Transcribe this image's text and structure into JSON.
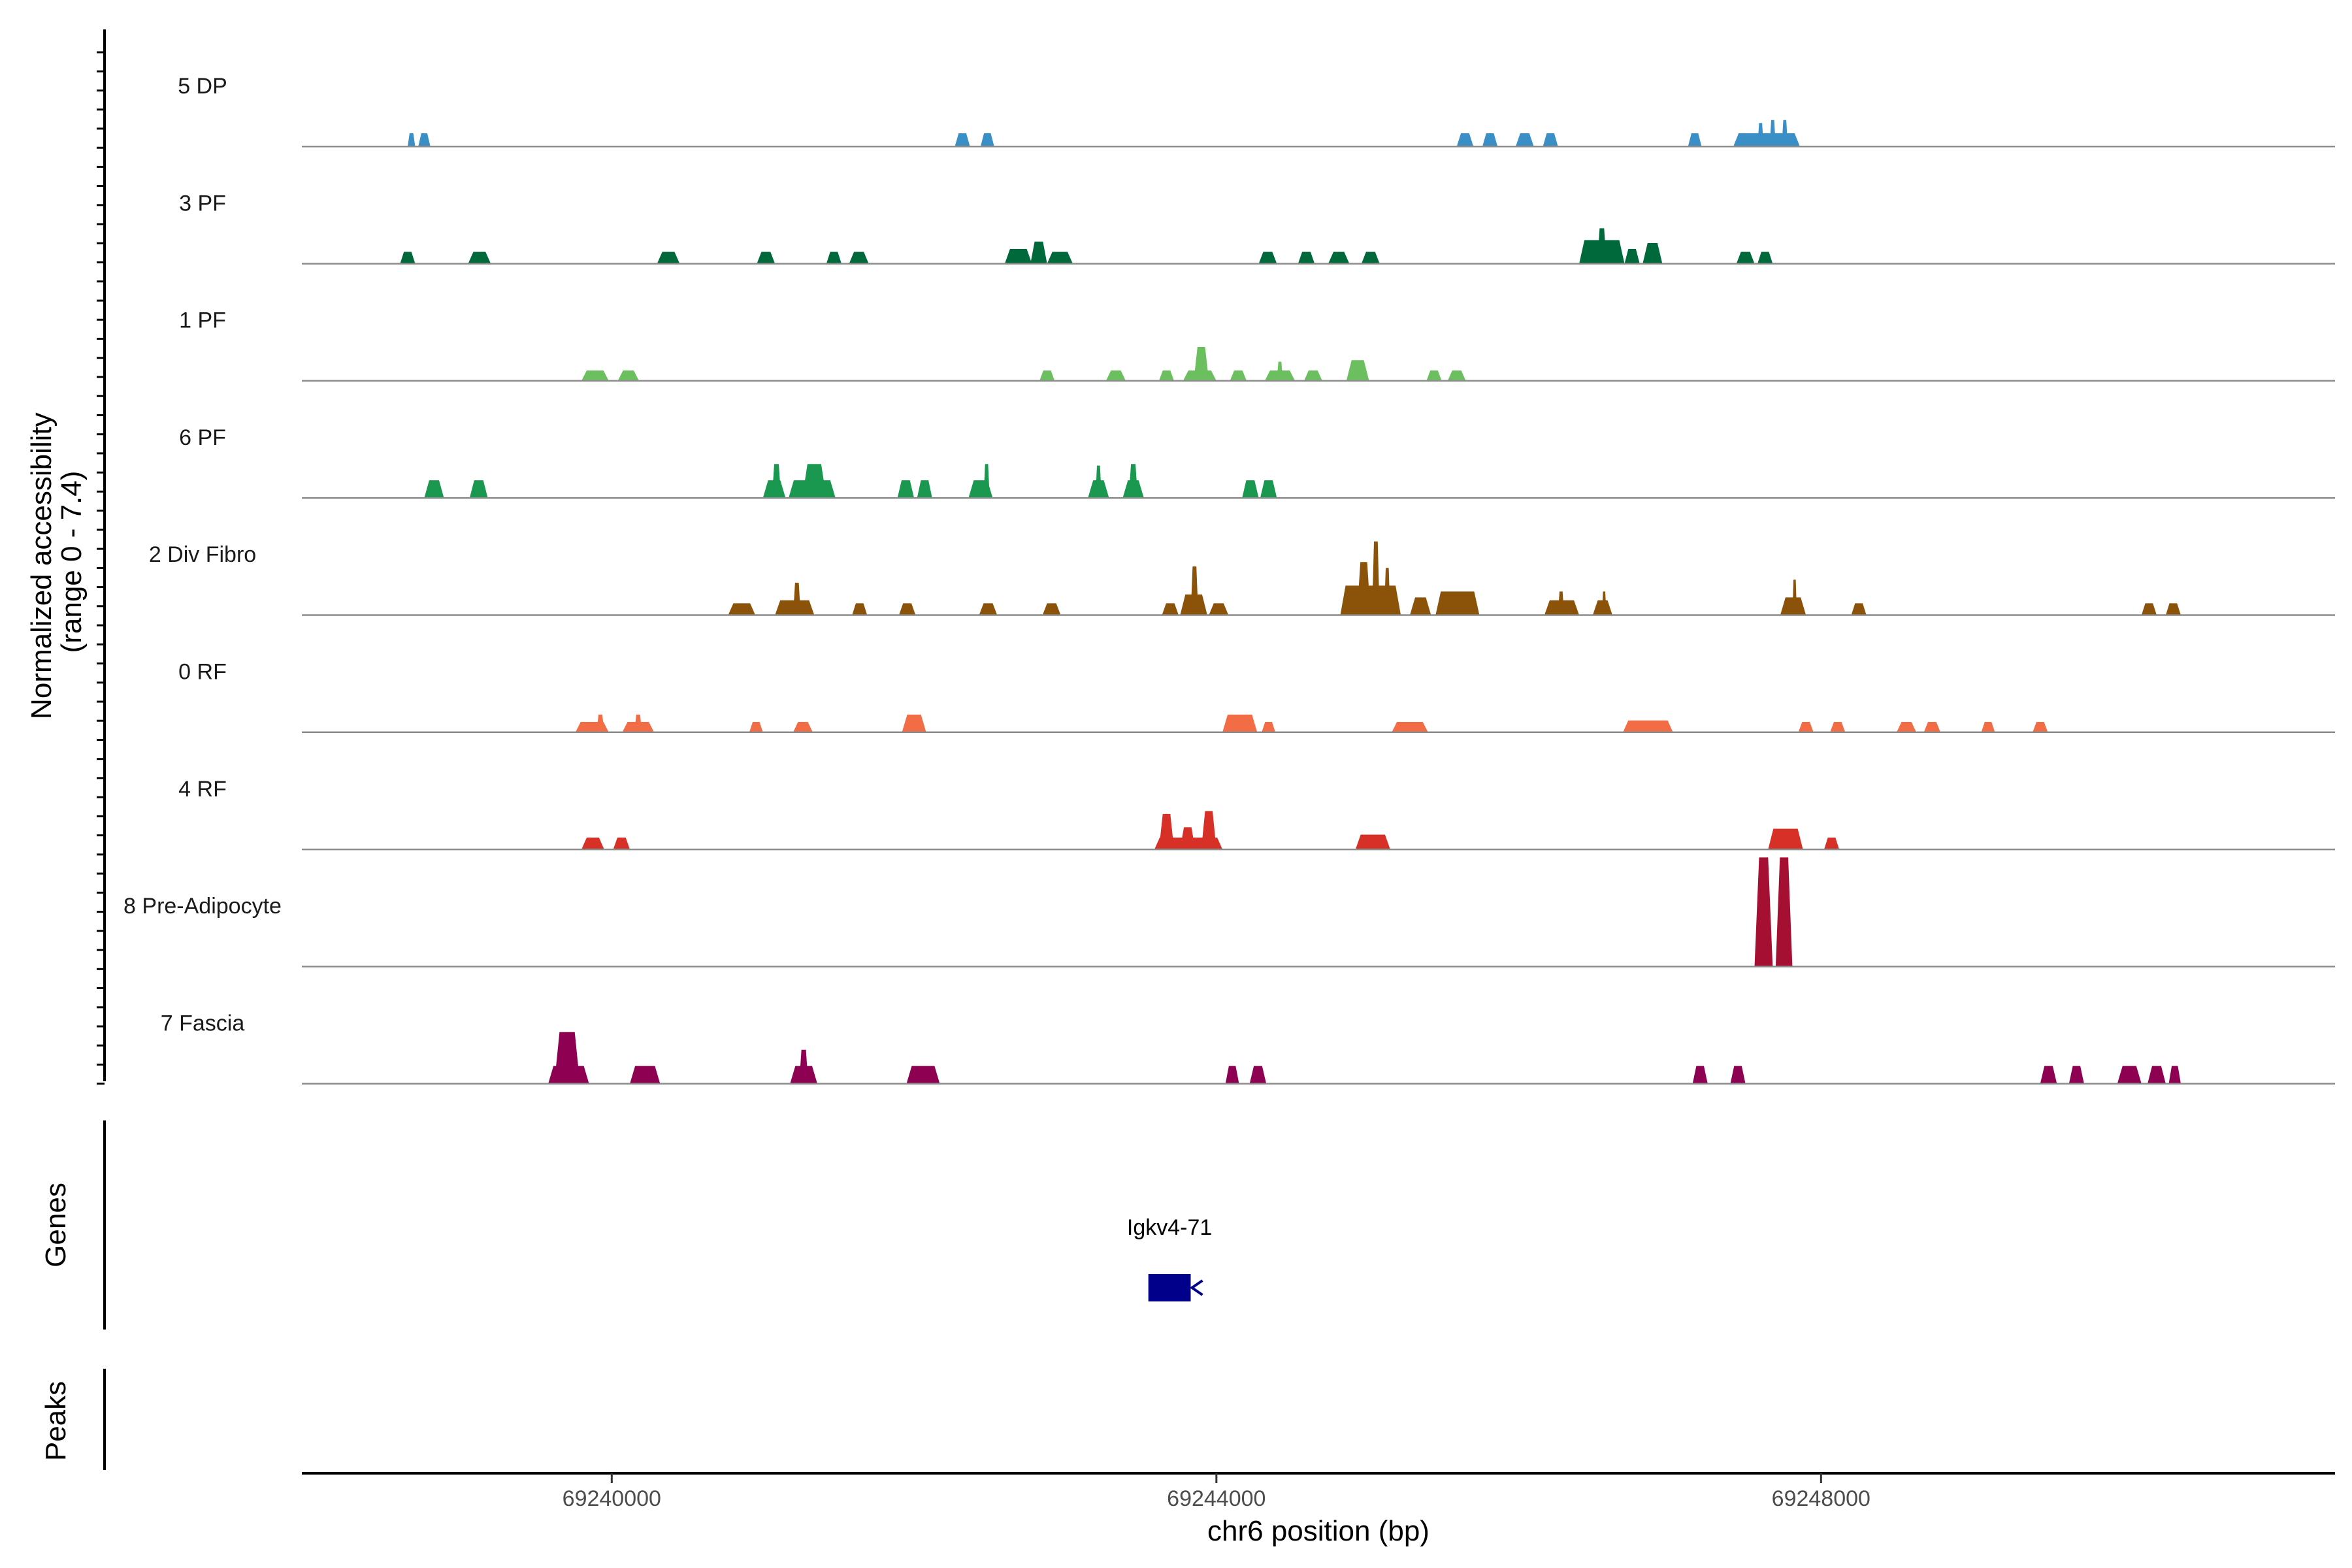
{
  "chart_data": {
    "type": "area",
    "title": "",
    "y_axis_title_line1": "Normalized accessibility",
    "y_axis_title_line2": "(range 0 - 7.4)",
    "ylim": [
      0,
      7.4
    ],
    "x_axis_title": "chr6 position (bp)",
    "xlim": [
      69237950,
      69251400
    ],
    "x_ticks": [
      69240000,
      69244000,
      69248000
    ],
    "x_tick_labels": [
      "69240000",
      "69244000",
      "69248000"
    ],
    "series": [
      {
        "name": "5 DP",
        "color": "#3a8fc7",
        "peaks": [
          [
            69238650,
            69238700,
            0.9
          ],
          [
            69238720,
            69238800,
            0.9
          ],
          [
            69242270,
            69242370,
            0.9
          ],
          [
            69242440,
            69242530,
            0.9
          ],
          [
            69245590,
            69245700,
            0.9
          ],
          [
            69245760,
            69245860,
            0.9
          ],
          [
            69245980,
            69246100,
            0.9
          ],
          [
            69246160,
            69246260,
            0.9
          ],
          [
            69247120,
            69247210,
            0.9
          ],
          [
            69247420,
            69247860,
            0.9
          ],
          [
            69247580,
            69247620,
            1.6
          ],
          [
            69247660,
            69247700,
            1.8
          ],
          [
            69247740,
            69247780,
            1.8
          ]
        ]
      },
      {
        "name": "3 PF",
        "color": "#00693b",
        "peaks": [
          [
            69238600,
            69238700,
            0.8
          ],
          [
            69239050,
            69239200,
            0.8
          ],
          [
            69240300,
            69240450,
            0.8
          ],
          [
            69240960,
            69241080,
            0.8
          ],
          [
            69241420,
            69241520,
            0.8
          ],
          [
            69241570,
            69241700,
            0.8
          ],
          [
            69242600,
            69242780,
            1.0
          ],
          [
            69242770,
            69242880,
            1.5
          ],
          [
            69242880,
            69243050,
            0.8
          ],
          [
            69244280,
            69244400,
            0.8
          ],
          [
            69244540,
            69244650,
            0.8
          ],
          [
            69244740,
            69244880,
            0.8
          ],
          [
            69244960,
            69245080,
            0.8
          ],
          [
            69246400,
            69246700,
            1.6
          ],
          [
            69246520,
            69246580,
            2.4
          ],
          [
            69246700,
            69246800,
            1.0
          ],
          [
            69246820,
            69246950,
            1.4
          ],
          [
            69247440,
            69247560,
            0.8
          ],
          [
            69247580,
            69247680,
            0.8
          ]
        ]
      },
      {
        "name": "1 PF",
        "color": "#6bbf5e",
        "peaks": [
          [
            69239800,
            69239980,
            0.7
          ],
          [
            69240040,
            69240180,
            0.7
          ],
          [
            69242830,
            69242930,
            0.7
          ],
          [
            69243270,
            69243400,
            0.7
          ],
          [
            69243620,
            69243720,
            0.7
          ],
          [
            69243780,
            69244000,
            0.7
          ],
          [
            69243850,
            69243950,
            2.3
          ],
          [
            69244090,
            69244200,
            0.7
          ],
          [
            69244320,
            69244520,
            0.7
          ],
          [
            69244400,
            69244440,
            1.3
          ],
          [
            69244580,
            69244700,
            0.7
          ],
          [
            69244860,
            69245010,
            1.4
          ],
          [
            69245390,
            69245490,
            0.7
          ],
          [
            69245530,
            69245650,
            0.7
          ]
        ]
      },
      {
        "name": "6 PF",
        "color": "#1a9850",
        "peaks": [
          [
            69238760,
            69238890,
            1.2
          ],
          [
            69239060,
            69239180,
            1.2
          ],
          [
            69241000,
            69241150,
            1.2
          ],
          [
            69241060,
            69241120,
            2.3
          ],
          [
            69241170,
            69241480,
            1.2
          ],
          [
            69241260,
            69241420,
            2.3
          ],
          [
            69241890,
            69242000,
            1.2
          ],
          [
            69242020,
            69242120,
            1.2
          ],
          [
            69242360,
            69242520,
            1.2
          ],
          [
            69242460,
            69242500,
            2.3
          ],
          [
            69243150,
            69243290,
            1.2
          ],
          [
            69243200,
            69243240,
            2.2
          ],
          [
            69243380,
            69243520,
            1.2
          ],
          [
            69243420,
            69243480,
            2.3
          ],
          [
            69244170,
            69244280,
            1.2
          ],
          [
            69244290,
            69244400,
            1.2
          ]
        ]
      },
      {
        "name": "2 Div Fibro",
        "color": "#8b5209",
        "peaks": [
          [
            69240770,
            69240950,
            0.8
          ],
          [
            69241080,
            69241340,
            1.0
          ],
          [
            69241200,
            69241250,
            2.2
          ],
          [
            69241590,
            69241690,
            0.8
          ],
          [
            69241900,
            69242010,
            0.8
          ],
          [
            69242430,
            69242550,
            0.8
          ],
          [
            69242850,
            69242970,
            0.8
          ],
          [
            69243640,
            69243750,
            0.8
          ],
          [
            69243760,
            69243940,
            1.4
          ],
          [
            69243830,
            69243880,
            3.3
          ],
          [
            69243950,
            69244080,
            0.8
          ],
          [
            69244820,
            69245220,
            2.0
          ],
          [
            69244930,
            69245020,
            3.6
          ],
          [
            69245030,
            69245080,
            5.0
          ],
          [
            69245110,
            69245150,
            3.2
          ],
          [
            69245280,
            69245420,
            1.2
          ],
          [
            69245450,
            69245740,
            1.6
          ],
          [
            69246170,
            69246400,
            1.0
          ],
          [
            69246260,
            69246300,
            1.6
          ],
          [
            69246490,
            69246620,
            1.0
          ],
          [
            69246550,
            69246580,
            1.6
          ],
          [
            69247730,
            69247900,
            1.2
          ],
          [
            69247810,
            69247840,
            2.4
          ],
          [
            69248200,
            69248300,
            0.8
          ],
          [
            69250120,
            69250220,
            0.8
          ],
          [
            69250280,
            69250380,
            0.8
          ]
        ]
      },
      {
        "name": "0 RF",
        "color": "#f26c45",
        "peaks": [
          [
            69239760,
            69239980,
            0.7
          ],
          [
            69239900,
            69239950,
            1.2
          ],
          [
            69240070,
            69240280,
            0.7
          ],
          [
            69240150,
            69240200,
            1.2
          ],
          [
            69240910,
            69241000,
            0.7
          ],
          [
            69241200,
            69241330,
            0.7
          ],
          [
            69241920,
            69242080,
            1.2
          ],
          [
            69244040,
            69244270,
            1.2
          ],
          [
            69244300,
            69244390,
            0.7
          ],
          [
            69245160,
            69245400,
            0.7
          ],
          [
            69246690,
            69247020,
            0.8
          ],
          [
            69247850,
            69247950,
            0.7
          ],
          [
            69248060,
            69248160,
            0.7
          ],
          [
            69248500,
            69248630,
            0.7
          ],
          [
            69248680,
            69248790,
            0.7
          ],
          [
            69249060,
            69249150,
            0.7
          ],
          [
            69249400,
            69249500,
            0.7
          ]
        ]
      },
      {
        "name": "4 RF",
        "color": "#d73027",
        "peaks": [
          [
            69239800,
            69239950,
            0.8
          ],
          [
            69240010,
            69240120,
            0.8
          ],
          [
            69243590,
            69244040,
            0.8
          ],
          [
            69243620,
            69243720,
            2.4
          ],
          [
            69243760,
            69243860,
            1.5
          ],
          [
            69243900,
            69244000,
            2.6
          ],
          [
            69244920,
            69245150,
            1.0
          ],
          [
            69247650,
            69247880,
            1.4
          ],
          [
            69248020,
            69248120,
            0.8
          ]
        ]
      },
      {
        "name": "8 Pre-Adipocyte",
        "color": "#a50f32",
        "peaks": [
          [
            69247560,
            69247680,
            7.4
          ],
          [
            69247700,
            69247810,
            7.4
          ]
        ]
      },
      {
        "name": "7 Fascia",
        "color": "#8e0152",
        "peaks": [
          [
            69239580,
            69239850,
            1.2
          ],
          [
            69239620,
            69239790,
            3.5
          ],
          [
            69240120,
            69240320,
            1.2
          ],
          [
            69241180,
            69241360,
            1.2
          ],
          [
            69241240,
            69241300,
            2.3
          ],
          [
            69241950,
            69242170,
            1.2
          ],
          [
            69244060,
            69244150,
            1.2
          ],
          [
            69244220,
            69244330,
            1.2
          ],
          [
            69247150,
            69247250,
            1.2
          ],
          [
            69247400,
            69247500,
            1.2
          ],
          [
            69249450,
            69249560,
            1.2
          ],
          [
            69249640,
            69249740,
            1.2
          ],
          [
            69249960,
            69250120,
            1.2
          ],
          [
            69250160,
            69250280,
            1.2
          ],
          [
            69250300,
            69250380,
            1.2
          ]
        ]
      }
    ],
    "genes_label": "Genes",
    "gene": {
      "name": "Igkv4-71",
      "start": 69243550,
      "end": 69243830,
      "strand": "-",
      "color": "#00008b"
    },
    "peaks_label": "Peaks"
  }
}
